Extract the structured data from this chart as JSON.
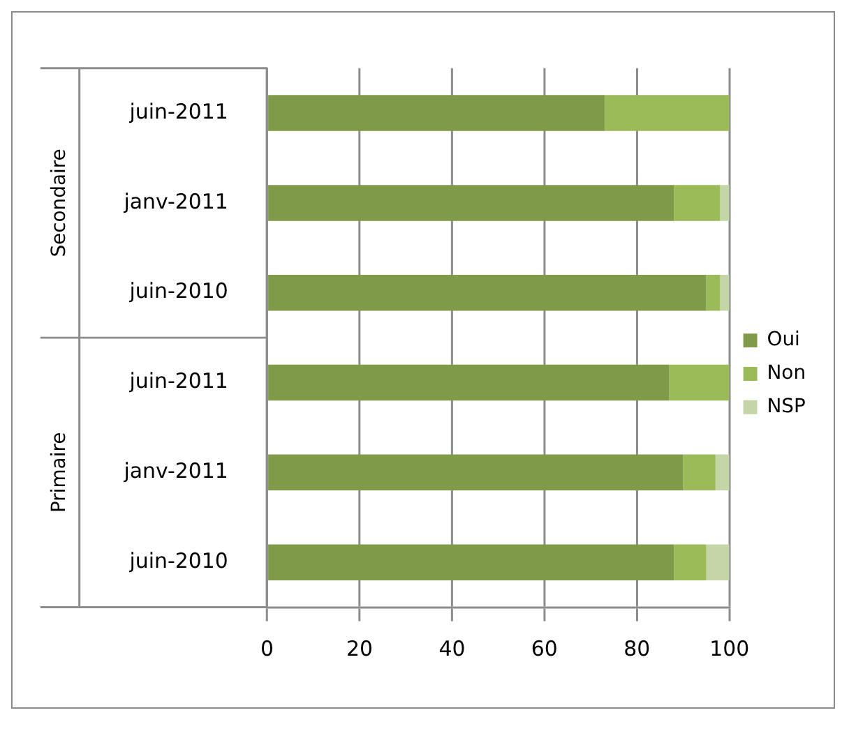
{
  "chart_data": {
    "type": "bar",
    "orientation": "horizontal",
    "stacked": true,
    "categories": [
      "juin-2011",
      "janv-2011",
      "juin-2010",
      "juin-2011",
      "janv-2011",
      "juin-2010"
    ],
    "annotations": [
      "Secondaire",
      "Primaire"
    ],
    "series": [
      {
        "name": "Oui",
        "color": "#7f9a48",
        "values": [
          73,
          88,
          95,
          87,
          90,
          88
        ]
      },
      {
        "name": "Non",
        "color": "#9bbb59",
        "values": [
          27,
          10,
          3,
          13,
          7,
          7
        ]
      },
      {
        "name": "NSP",
        "color": "#c4d6a7",
        "values": [
          0,
          2,
          2,
          0,
          3,
          5
        ]
      }
    ],
    "xlim": [
      0,
      100
    ],
    "xticks": [
      0,
      20,
      40,
      60,
      80,
      100
    ],
    "grid": "x",
    "legend": "right"
  }
}
